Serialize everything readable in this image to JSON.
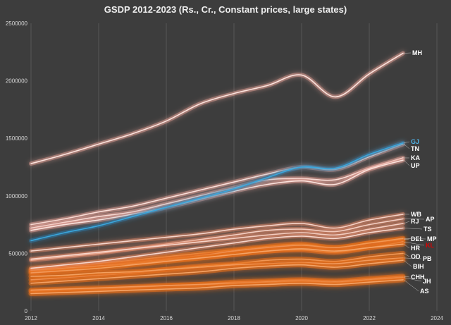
{
  "chart_data": {
    "type": "line",
    "title": "GSDP 2012-2023 (Rs., Cr., Constant prices, large states)",
    "xlabel": "",
    "ylabel": "",
    "xlim": [
      2012,
      2024
    ],
    "ylim": [
      0,
      2500000
    ],
    "x_ticks": [
      "2012",
      "2014",
      "2016",
      "2018",
      "2020",
      "2022",
      "2024"
    ],
    "y_ticks": [
      "0",
      "500000",
      "1000000",
      "1500000",
      "2000000",
      "2500000"
    ],
    "x": [
      2012,
      2013,
      2014,
      2015,
      2016,
      2017,
      2018,
      2019,
      2020,
      2021,
      2022,
      2023
    ],
    "series": [
      {
        "name": "MH",
        "group": "top",
        "label_color": "#ffffff",
        "values": [
          1280000,
          1360000,
          1450000,
          1540000,
          1650000,
          1800000,
          1890000,
          1960000,
          2050000,
          1860000,
          2060000,
          2240000
        ]
      },
      {
        "name": "GJ",
        "group": "blue",
        "label_color": "#4fb3e8",
        "values": [
          610000,
          680000,
          740000,
          820000,
          900000,
          980000,
          1060000,
          1160000,
          1250000,
          1240000,
          1360000,
          1460000
        ]
      },
      {
        "name": "TN",
        "group": "top",
        "label_color": "#ffffff",
        "values": [
          750000,
          800000,
          860000,
          910000,
          980000,
          1050000,
          1120000,
          1190000,
          1250000,
          1230000,
          1340000,
          1450000
        ]
      },
      {
        "name": "KA",
        "group": "top",
        "label_color": "#ffffff",
        "values": [
          720000,
          770000,
          820000,
          860000,
          930000,
          1000000,
          1070000,
          1140000,
          1150000,
          1140000,
          1240000,
          1330000
        ]
      },
      {
        "name": "UP",
        "group": "top",
        "label_color": "#ffffff",
        "values": [
          700000,
          750000,
          790000,
          840000,
          900000,
          970000,
          1040000,
          1100000,
          1130000,
          1100000,
          1230000,
          1310000
        ]
      },
      {
        "name": "WB",
        "group": "mid",
        "label_color": "#ffffff",
        "values": [
          520000,
          550000,
          580000,
          610000,
          640000,
          670000,
          710000,
          740000,
          760000,
          720000,
          790000,
          840000
        ]
      },
      {
        "name": "AP",
        "group": "mid",
        "label_color": "#ffffff",
        "values": [
          440000,
          470000,
          500000,
          540000,
          580000,
          620000,
          660000,
          700000,
          710000,
          690000,
          750000,
          800000
        ]
      },
      {
        "name": "RJ",
        "group": "mid",
        "label_color": "#ffffff",
        "values": [
          450000,
          480000,
          510000,
          540000,
          570000,
          600000,
          630000,
          660000,
          680000,
          660000,
          710000,
          760000
        ]
      },
      {
        "name": "TS",
        "group": "mid",
        "label_color": "#ffffff",
        "values": [
          370000,
          400000,
          430000,
          470000,
          510000,
          550000,
          590000,
          630000,
          650000,
          630000,
          680000,
          720000
        ]
      },
      {
        "name": "DEL",
        "group": "orange",
        "label_color": "#ffffff",
        "values": [
          360000,
          380000,
          410000,
          440000,
          470000,
          500000,
          530000,
          560000,
          580000,
          550000,
          590000,
          620000
        ]
      },
      {
        "name": "MP",
        "group": "orange",
        "label_color": "#ffffff",
        "values": [
          340000,
          360000,
          390000,
          420000,
          450000,
          480000,
          520000,
          550000,
          570000,
          550000,
          590000,
          630000
        ]
      },
      {
        "name": "KL",
        "group": "orange",
        "label_color": "#e00000",
        "values": [
          350000,
          370000,
          390000,
          410000,
          440000,
          460000,
          490000,
          520000,
          530000,
          510000,
          550000,
          600000
        ]
      },
      {
        "name": "HR",
        "group": "orange",
        "label_color": "#ffffff",
        "values": [
          330000,
          350000,
          370000,
          400000,
          430000,
          460000,
          490000,
          520000,
          540000,
          520000,
          550000,
          580000
        ]
      },
      {
        "name": "OD",
        "group": "orange",
        "label_color": "#ffffff",
        "values": [
          270000,
          290000,
          310000,
          330000,
          360000,
          390000,
          410000,
          440000,
          450000,
          430000,
          470000,
          500000
        ]
      },
      {
        "name": "PB",
        "group": "orange",
        "label_color": "#ffffff",
        "values": [
          300000,
          310000,
          330000,
          340000,
          360000,
          380000,
          400000,
          410000,
          420000,
          410000,
          440000,
          460000
        ]
      },
      {
        "name": "BIH",
        "group": "orange",
        "label_color": "#ffffff",
        "values": [
          240000,
          260000,
          280000,
          300000,
          320000,
          340000,
          370000,
          390000,
          400000,
          380000,
          410000,
          440000
        ]
      },
      {
        "name": "CHH",
        "group": "orange",
        "label_color": "#ffffff",
        "values": [
          170000,
          180000,
          190000,
          200000,
          220000,
          230000,
          250000,
          260000,
          270000,
          260000,
          280000,
          300000
        ]
      },
      {
        "name": "JH",
        "group": "orange",
        "label_color": "#ffffff",
        "values": [
          180000,
          190000,
          200000,
          210000,
          220000,
          230000,
          240000,
          250000,
          260000,
          250000,
          270000,
          290000
        ]
      },
      {
        "name": "AS",
        "group": "orange",
        "label_color": "#ffffff",
        "values": [
          150000,
          160000,
          170000,
          180000,
          190000,
          200000,
          220000,
          230000,
          240000,
          230000,
          250000,
          270000
        ]
      }
    ]
  }
}
